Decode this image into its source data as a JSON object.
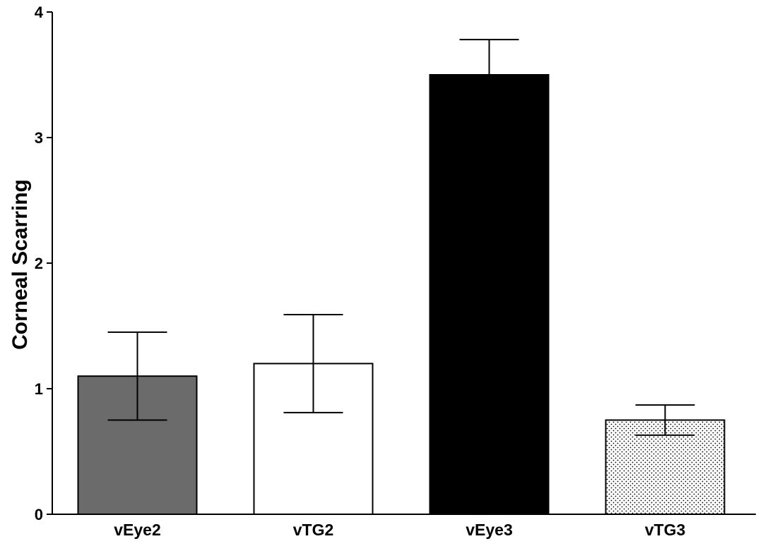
{
  "chart_data": {
    "type": "bar",
    "categories": [
      "vEye2",
      "vTG2",
      "vEye3",
      "vTG3"
    ],
    "values": [
      1.1,
      1.2,
      3.5,
      0.75
    ],
    "error_lower": [
      0.75,
      0.81,
      3.5,
      0.63
    ],
    "error_upper": [
      1.45,
      1.59,
      3.78,
      0.87
    ],
    "title": "",
    "xlabel": "",
    "ylabel": "Corneal Scarring",
    "ylim": [
      0,
      4
    ],
    "yticks": [
      "0",
      "1",
      "2",
      "3",
      "4"
    ],
    "bar_styles": [
      {
        "fill": "#6b6b6b",
        "pattern": "solid"
      },
      {
        "fill": "#ffffff",
        "pattern": "solid"
      },
      {
        "fill": "#000000",
        "pattern": "solid"
      },
      {
        "fill": "#ffffff",
        "pattern": "dots"
      }
    ],
    "grid": false,
    "legend": "none"
  }
}
